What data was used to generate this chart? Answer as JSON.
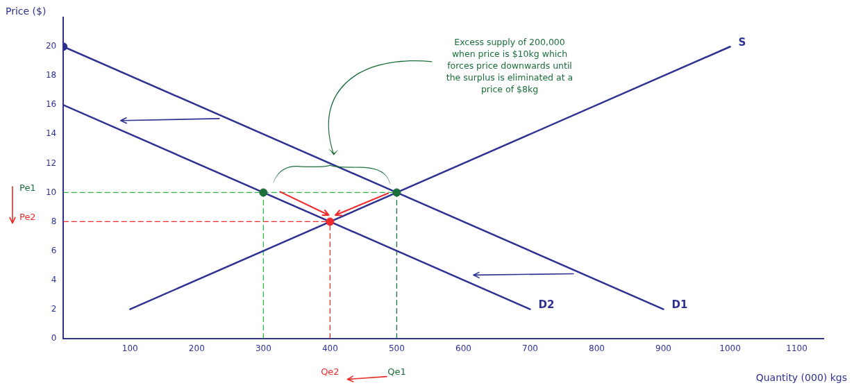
{
  "chart_data": {
    "type": "line",
    "xlabel": "Quantity (000) kgs",
    "ylabel": "Price ($)",
    "xlim": [
      0,
      1140
    ],
    "ylim": [
      0,
      22
    ],
    "xticks": [
      100,
      200,
      300,
      400,
      500,
      600,
      700,
      800,
      900,
      1000,
      1100
    ],
    "yticks": [
      0,
      2,
      4,
      6,
      8,
      10,
      12,
      14,
      16,
      18,
      20
    ],
    "legend": false,
    "series": [
      {
        "name": "S",
        "color": "#2e3192",
        "x": [
          100,
          1000
        ],
        "values": [
          2,
          20
        ]
      },
      {
        "name": "D1",
        "color": "#2e3192",
        "x": [
          0,
          900
        ],
        "values": [
          20,
          2
        ]
      },
      {
        "name": "D2",
        "color": "#2e3192",
        "x": [
          0,
          700
        ],
        "values": [
          16,
          2
        ]
      },
      {
        "color": "#2db34a",
        "line_style": "dashed",
        "x": [
          0,
          500
        ],
        "values": [
          10,
          10
        ]
      },
      {
        "color": "#2db34a",
        "line_style": "dashed",
        "x": [
          300,
          300
        ],
        "values": [
          0,
          10
        ]
      },
      {
        "color": "#1f6e3a",
        "line_style": "dashed",
        "x": [
          500,
          500
        ],
        "values": [
          0,
          10
        ]
      },
      {
        "color": "#ee2a2a",
        "line_style": "dashed",
        "x": [
          0,
          400
        ],
        "values": [
          8,
          8
        ]
      },
      {
        "color": "#ee2a2a",
        "line_style": "dashed",
        "x": [
          400,
          400
        ],
        "values": [
          0,
          8
        ]
      },
      {
        "type": "scatter",
        "marker": "circle",
        "x": [
          0,
          300,
          500,
          400
        ],
        "values": [
          20,
          10,
          10,
          8
        ],
        "colors": [
          "#2e3192",
          "#1a6e3a",
          "#1a6e3a",
          "#ee2a2a"
        ]
      }
    ],
    "annotations": [
      "Excess supply of 200,000 when price is $10kg which forces price downwards until the surplus is eliminated at a price of $8kg",
      "Pe1",
      "Pe2",
      "Qe2",
      "Qe1"
    ]
  }
}
